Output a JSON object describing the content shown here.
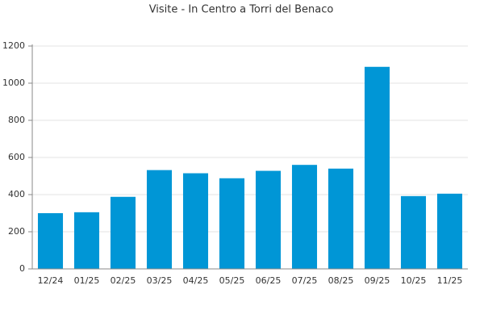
{
  "chart_data": {
    "type": "bar",
    "title": "Visite - In Centro a Torri del Benaco",
    "categories": [
      "12/24",
      "01/25",
      "02/25",
      "03/25",
      "04/25",
      "05/25",
      "06/25",
      "07/25",
      "08/25",
      "09/25",
      "10/25",
      "11/25"
    ],
    "values": [
      300,
      305,
      388,
      532,
      515,
      488,
      528,
      560,
      540,
      1088,
      392,
      405
    ],
    "color": "#0096d6",
    "ylim": [
      0,
      1200
    ],
    "yticks": [
      0,
      200,
      400,
      600,
      800,
      1000,
      1200
    ],
    "grid": true
  }
}
